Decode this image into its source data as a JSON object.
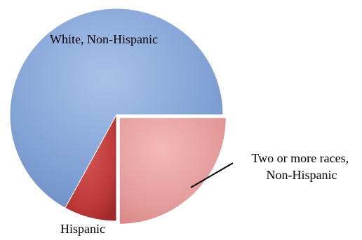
{
  "chart_data": {
    "type": "pie",
    "title": "",
    "slices": [
      {
        "label": "White, Non-Hispanic",
        "value": 67,
        "color": "#7f9fd3"
      },
      {
        "label": "Two or more races, Non-Hispanic",
        "label_lines": [
          "Two or more races,",
          "Non-Hispanic"
        ],
        "value": 25,
        "color": "#e49a9a",
        "exploded": true
      },
      {
        "label": "Hispanic",
        "value": 8,
        "color": "#bf3a3a"
      }
    ],
    "legend": "none"
  }
}
